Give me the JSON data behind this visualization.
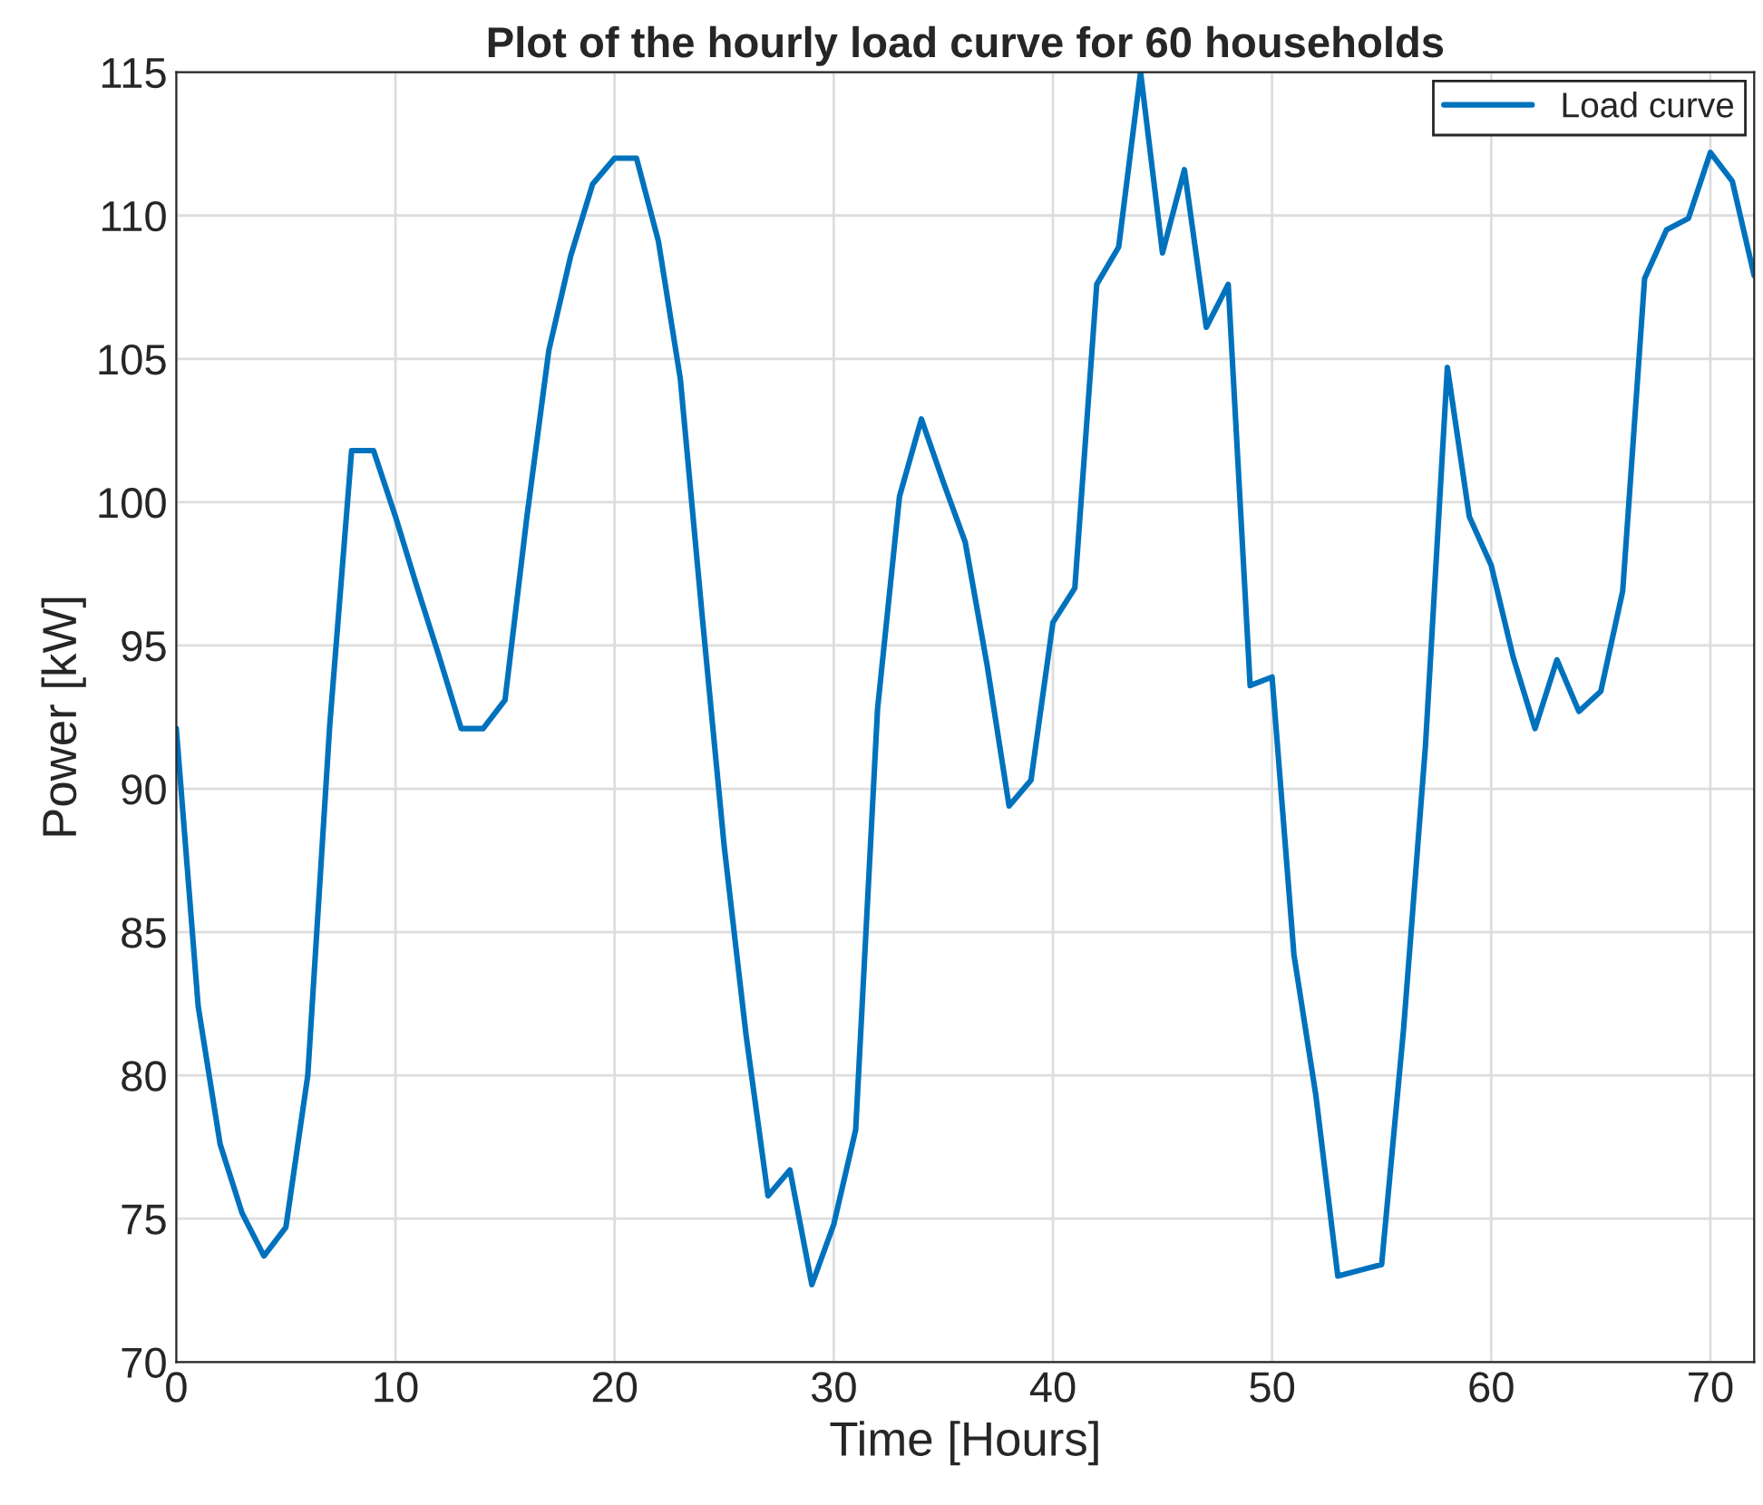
{
  "chart_data": {
    "type": "line",
    "title": "Plot of the hourly load curve for 60 households",
    "xlabel": "Time [Hours]",
    "ylabel": "Power [kW]",
    "x": [
      0,
      1,
      2,
      3,
      4,
      5,
      6,
      7,
      8,
      9,
      10,
      11,
      12,
      13,
      14,
      15,
      16,
      17,
      18,
      19,
      20,
      21,
      22,
      23,
      24,
      25,
      26,
      27,
      28,
      29,
      30,
      31,
      32,
      33,
      34,
      35,
      36,
      37,
      38,
      39,
      40,
      41,
      42,
      43,
      44,
      45,
      46,
      47,
      48,
      49,
      50,
      51,
      52,
      53,
      54,
      55,
      56,
      57,
      58,
      59,
      60,
      61,
      62,
      63,
      64,
      65,
      66,
      67,
      68,
      69,
      70,
      71,
      72
    ],
    "series": [
      {
        "name": "Load curve",
        "color": "#0072bd",
        "values": [
          92.1,
          82.4,
          77.6,
          75.2,
          73.7,
          74.7,
          80,
          92.2,
          101.8,
          101.8,
          99.5,
          97,
          94.6,
          92.1,
          92.1,
          93.1,
          99.5,
          105.3,
          108.6,
          111.1,
          112,
          112,
          109.1,
          104.3,
          96,
          88,
          81.4,
          75.8,
          76.7,
          72.7,
          74.8,
          78.1,
          92.8,
          100.2,
          102.9,
          100.7,
          98.6,
          94.3,
          89.4,
          90.3,
          95.8,
          97,
          107.6,
          108.9,
          115,
          108.7,
          111.6,
          106.1,
          107.6,
          93.6,
          93.9,
          84.2,
          79.3,
          73,
          73.2,
          73.4,
          81.6,
          91.5,
          104.7,
          99.5,
          97.8,
          94.6,
          92.1,
          94.5,
          92.7,
          93.4,
          96.9,
          107.8,
          109.5,
          109.9,
          112.2,
          111.2,
          107.9
        ]
      }
    ],
    "xlim": [
      0,
      72
    ],
    "xticks": [
      0,
      10,
      20,
      30,
      40,
      50,
      60,
      70
    ],
    "ylim": [
      70,
      115
    ],
    "yticks": [
      70,
      75,
      80,
      85,
      90,
      95,
      100,
      105,
      110,
      115
    ],
    "grid": true,
    "legend": "top right",
    "marker": "none",
    "line_style": "solid"
  }
}
